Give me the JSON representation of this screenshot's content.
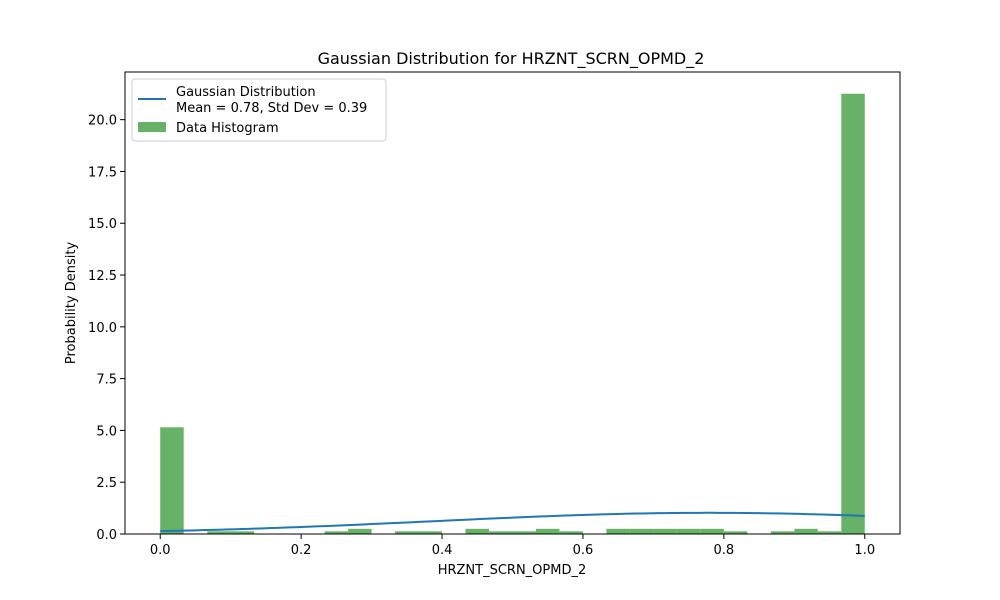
{
  "chart_data": {
    "type": "bar",
    "title": "Gaussian Distribution for HRZNT_SCRN_OPMD_2",
    "xlabel": "HRZNT_SCRN_OPMD_2",
    "ylabel": "Probability Density",
    "xlim": [
      -0.05,
      1.05
    ],
    "ylim": [
      0,
      22.3
    ],
    "xticks": [
      0.0,
      0.2,
      0.4,
      0.6,
      0.8,
      1.0
    ],
    "xtick_labels": [
      "0.0",
      "0.2",
      "0.4",
      "0.6",
      "0.8",
      "1.0"
    ],
    "yticks": [
      0.0,
      2.5,
      5.0,
      7.5,
      10.0,
      12.5,
      15.0,
      17.5,
      20.0
    ],
    "ytick_labels": [
      "0.0",
      "2.5",
      "5.0",
      "7.5",
      "10.0",
      "12.5",
      "15.0",
      "17.5",
      "20.0"
    ],
    "grid": false,
    "legend_position": "upper-left",
    "histogram": {
      "name": "Data Histogram",
      "color": "#66b266",
      "bin_width": 0.0333,
      "bin_starts": [
        0.0,
        0.0333,
        0.0667,
        0.1,
        0.1333,
        0.1667,
        0.2,
        0.2333,
        0.2667,
        0.3,
        0.3333,
        0.3667,
        0.4,
        0.4333,
        0.4667,
        0.5,
        0.5333,
        0.5667,
        0.6,
        0.6333,
        0.6667,
        0.7,
        0.7333,
        0.7667,
        0.8,
        0.8333,
        0.8667,
        0.9,
        0.9333,
        0.9667
      ],
      "values": [
        5.15,
        0.0,
        0.13,
        0.13,
        0.0,
        0.0,
        0.0,
        0.13,
        0.25,
        0.0,
        0.13,
        0.13,
        0.0,
        0.25,
        0.13,
        0.13,
        0.25,
        0.13,
        0.0,
        0.25,
        0.25,
        0.25,
        0.25,
        0.25,
        0.13,
        0.0,
        0.13,
        0.25,
        0.13,
        21.25
      ]
    },
    "gaussian": {
      "name": "Gaussian Distribution\nMean = 0.78, Std Dev = 0.39",
      "color": "#1f77b4",
      "mean": 0.78,
      "std": 0.39,
      "x_range": [
        0.0,
        1.0
      ]
    },
    "legend": [
      {
        "label_line1": "Gaussian Distribution",
        "label_line2": "Mean = 0.78, Std Dev = 0.39",
        "kind": "line"
      },
      {
        "label_line1": "Data Histogram",
        "kind": "patch"
      }
    ]
  }
}
